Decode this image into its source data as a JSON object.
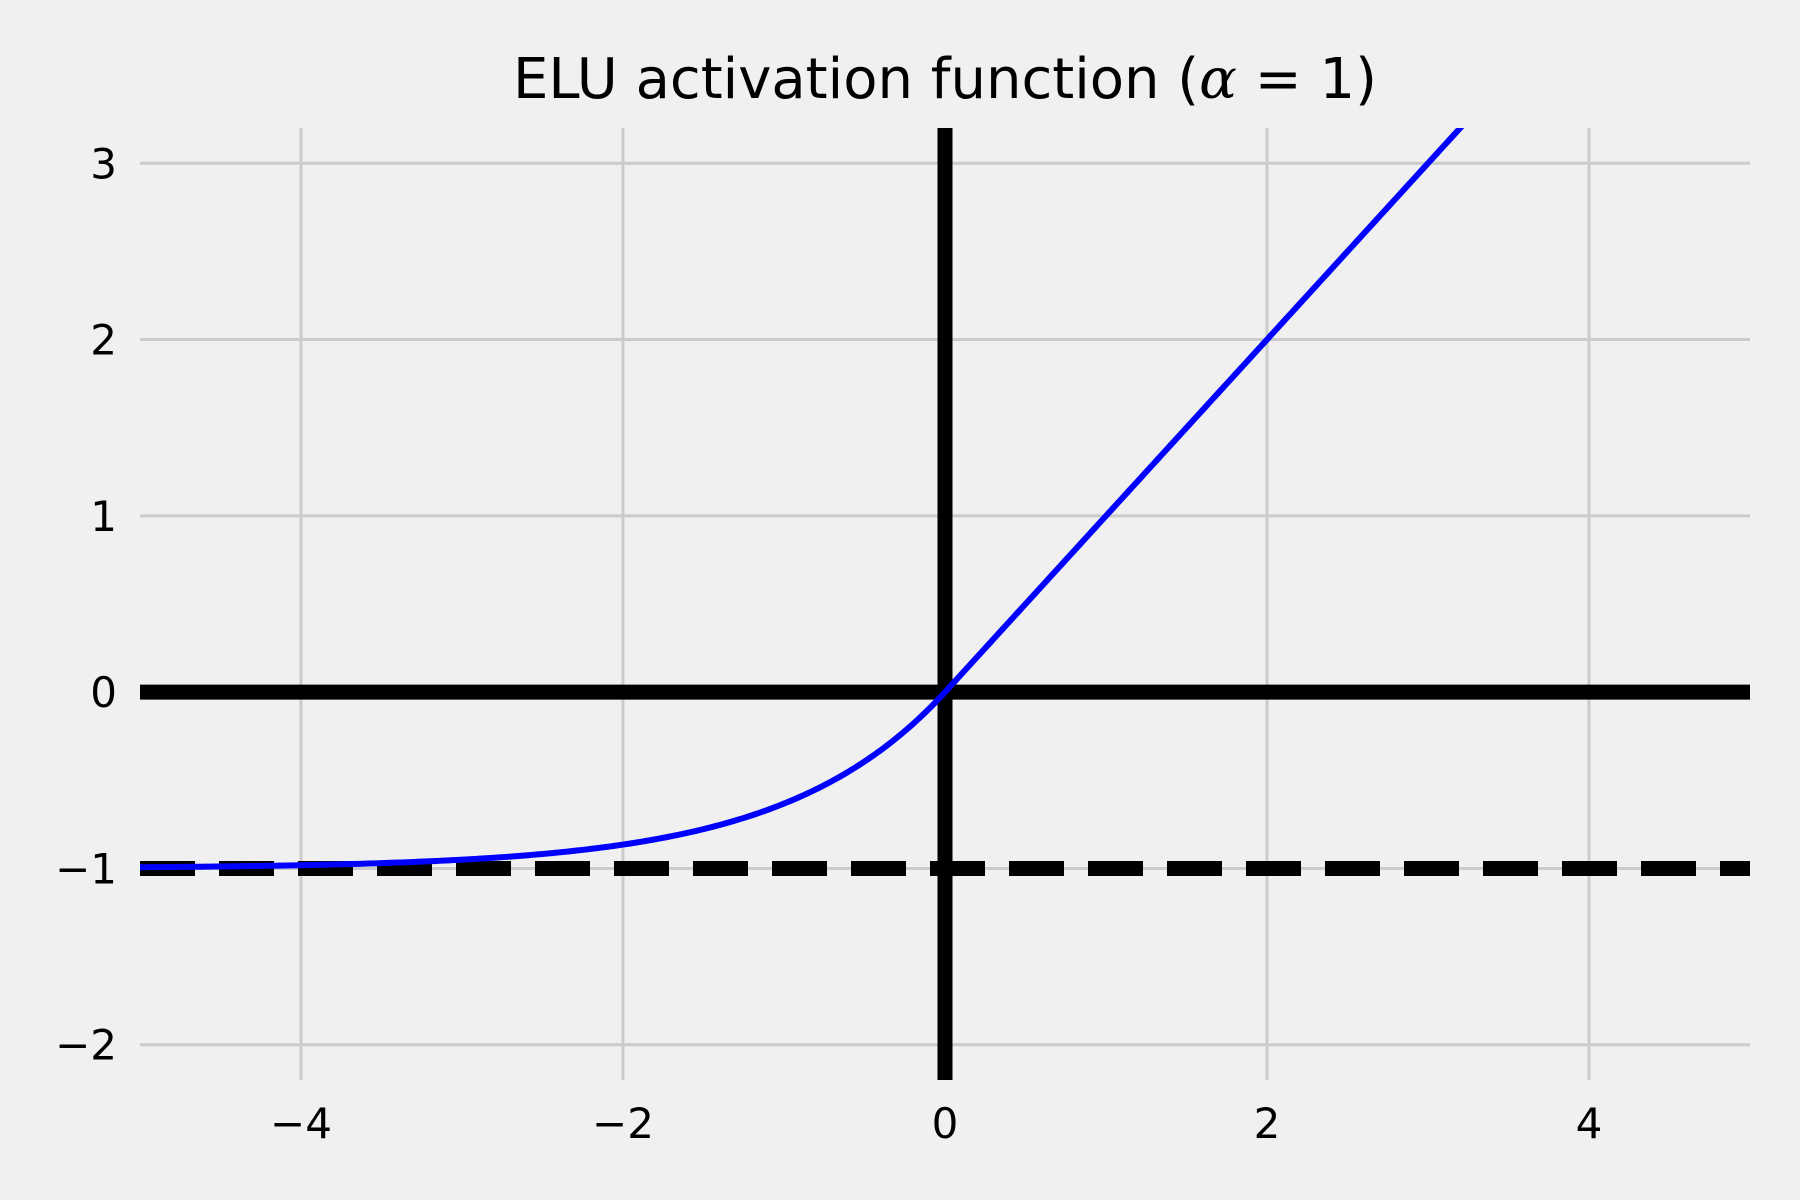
{
  "chart_data": {
    "type": "line",
    "title": {
      "prefix": "ELU activation function (",
      "symbol": "α",
      "suffix": " = 1)"
    },
    "xlabel": "",
    "ylabel": "",
    "xlim": [
      -5,
      5
    ],
    "ylim": [
      -2.2,
      3.2
    ],
    "grid": true,
    "x_ticks": [
      -4,
      -2,
      0,
      2,
      4
    ],
    "y_ticks": [
      -2,
      -1,
      0,
      1,
      2,
      3
    ],
    "x_tick_labels": [
      "−4",
      "−2",
      "0",
      "2",
      "4"
    ],
    "y_tick_labels": [
      "−2",
      "−1",
      "0",
      "1",
      "2",
      "3"
    ],
    "series": [
      {
        "function": "elu",
        "alpha": 1,
        "x_range": [
          -5,
          5
        ],
        "color": "#0000ff"
      }
    ],
    "reference_lines": [
      {
        "orientation": "horizontal",
        "value": 0,
        "style": "solid",
        "color": "#000000"
      },
      {
        "orientation": "horizontal",
        "value": -1,
        "style": "dashed",
        "color": "#000000"
      },
      {
        "orientation": "vertical",
        "value": 0,
        "style": "solid",
        "color": "#000000"
      }
    ],
    "colors": {
      "background": "#f0f0f0",
      "grid": "#cbcbcb"
    }
  }
}
